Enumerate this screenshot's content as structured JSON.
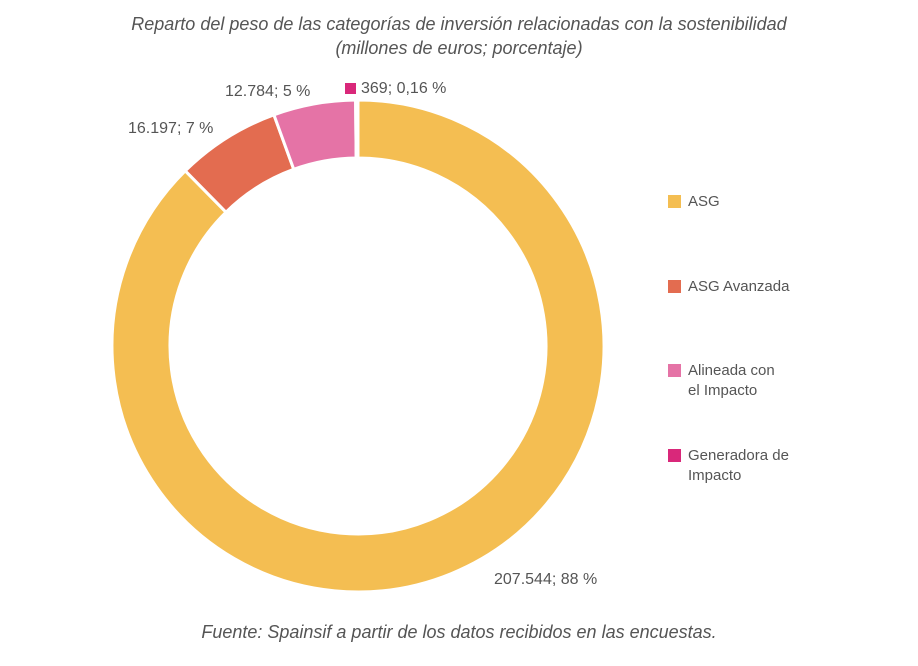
{
  "chart_data": {
    "type": "pie",
    "donut": true,
    "title": "Reparto del peso de las categorías de inversión relacionadas con la sostenibilidad",
    "subtitle": "(millones de euros; porcentaje)",
    "source": "Fuente: Spainsif a partir de los datos recibidos en las encuestas.",
    "legend_position": "right",
    "slices": [
      {
        "name": "ASG",
        "value": 207544,
        "label": "207.544; 88 %",
        "color": "#F4BE52"
      },
      {
        "name": "ASG Avanzada",
        "value": 16197,
        "label": "16.197; 7 %",
        "color": "#E36C50"
      },
      {
        "name": "Alineada con el Impacto",
        "value": 12784,
        "label": "12.784; 5 %",
        "color": "#E573A6"
      },
      {
        "name": "Generadora de Impacto",
        "value": 369,
        "label": "369; 0,16 %",
        "color": "#D9287A"
      }
    ]
  }
}
